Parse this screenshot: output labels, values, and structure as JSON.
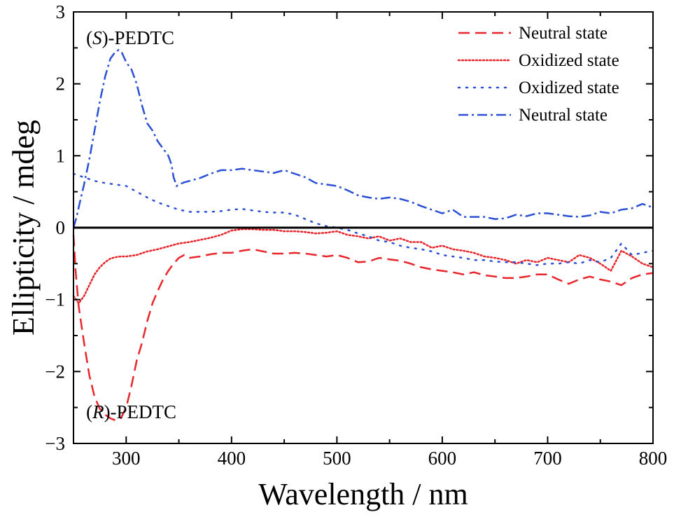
{
  "chart_data": {
    "type": "line",
    "xlabel": "Wavelength / nm",
    "ylabel": "Ellipticity / mdeg",
    "xlim": [
      250,
      800
    ],
    "ylim": [
      -3,
      3
    ],
    "x_ticks": [
      300,
      400,
      500,
      600,
      700,
      800
    ],
    "y_ticks": [
      -3,
      -2,
      -1,
      0,
      1,
      2,
      3
    ],
    "zero_line": true,
    "grid": false,
    "legend_position": "top-right",
    "annotations": [
      {
        "italic": "S",
        "rest": "-PEDTC",
        "x": 262,
        "y": 2.55
      },
      {
        "italic": "R",
        "rest": "-PEDTC",
        "x": 262,
        "y": -2.65
      }
    ],
    "series": [
      {
        "name": "Neutral state",
        "color": "#e8252b",
        "dash": "dash",
        "x": [
          250,
          252,
          255,
          260,
          265,
          270,
          275,
          280,
          285,
          290,
          295,
          300,
          305,
          310,
          315,
          320,
          325,
          330,
          335,
          340,
          345,
          350,
          355,
          360,
          370,
          380,
          390,
          400,
          410,
          420,
          430,
          440,
          450,
          460,
          470,
          480,
          490,
          500,
          510,
          520,
          530,
          540,
          550,
          560,
          570,
          580,
          590,
          600,
          610,
          620,
          630,
          640,
          650,
          660,
          670,
          680,
          690,
          700,
          710,
          720,
          730,
          740,
          750,
          760,
          770,
          780,
          790,
          800
        ],
        "y": [
          -0.1,
          -0.6,
          -1.1,
          -1.6,
          -2.05,
          -2.35,
          -2.52,
          -2.6,
          -2.65,
          -2.68,
          -2.65,
          -2.5,
          -2.2,
          -1.85,
          -1.6,
          -1.3,
          -1.05,
          -0.88,
          -0.72,
          -0.6,
          -0.5,
          -0.42,
          -0.38,
          -0.42,
          -0.4,
          -0.37,
          -0.35,
          -0.35,
          -0.32,
          -0.3,
          -0.33,
          -0.36,
          -0.36,
          -0.35,
          -0.36,
          -0.38,
          -0.4,
          -0.38,
          -0.42,
          -0.48,
          -0.47,
          -0.42,
          -0.44,
          -0.46,
          -0.5,
          -0.55,
          -0.58,
          -0.6,
          -0.62,
          -0.65,
          -0.62,
          -0.66,
          -0.68,
          -0.7,
          -0.7,
          -0.68,
          -0.65,
          -0.65,
          -0.72,
          -0.78,
          -0.72,
          -0.68,
          -0.72,
          -0.75,
          -0.8,
          -0.7,
          -0.65,
          -0.63
        ]
      },
      {
        "name": "Oxidized state",
        "color": "#e8252b",
        "dash": "dot",
        "x": [
          250,
          255,
          260,
          265,
          270,
          275,
          280,
          285,
          290,
          295,
          300,
          310,
          320,
          330,
          340,
          350,
          360,
          370,
          380,
          390,
          400,
          410,
          420,
          430,
          440,
          450,
          460,
          470,
          480,
          490,
          500,
          510,
          520,
          530,
          540,
          550,
          560,
          570,
          580,
          590,
          600,
          610,
          620,
          630,
          640,
          650,
          660,
          670,
          680,
          690,
          700,
          710,
          720,
          730,
          740,
          750,
          760,
          770,
          780,
          790,
          800
        ],
        "y": [
          -0.95,
          -1.05,
          -0.95,
          -0.8,
          -0.65,
          -0.55,
          -0.48,
          -0.43,
          -0.41,
          -0.4,
          -0.4,
          -0.38,
          -0.33,
          -0.3,
          -0.26,
          -0.22,
          -0.2,
          -0.17,
          -0.14,
          -0.1,
          -0.04,
          -0.02,
          -0.02,
          -0.03,
          -0.03,
          -0.05,
          -0.05,
          -0.06,
          -0.08,
          -0.07,
          -0.05,
          -0.1,
          -0.12,
          -0.15,
          -0.12,
          -0.18,
          -0.15,
          -0.2,
          -0.2,
          -0.28,
          -0.25,
          -0.3,
          -0.32,
          -0.35,
          -0.4,
          -0.42,
          -0.45,
          -0.5,
          -0.45,
          -0.48,
          -0.42,
          -0.45,
          -0.48,
          -0.38,
          -0.42,
          -0.5,
          -0.6,
          -0.32,
          -0.4,
          -0.5,
          -0.55
        ]
      },
      {
        "name": "Oxidized state",
        "color": "#2b50d6",
        "dash": "dot",
        "x": [
          250,
          260,
          270,
          280,
          290,
          300,
          310,
          320,
          330,
          340,
          350,
          360,
          370,
          380,
          390,
          400,
          410,
          420,
          430,
          440,
          450,
          460,
          470,
          480,
          490,
          500,
          510,
          520,
          530,
          540,
          550,
          560,
          570,
          580,
          590,
          600,
          610,
          620,
          630,
          640,
          650,
          660,
          670,
          680,
          690,
          700,
          710,
          720,
          730,
          740,
          750,
          760,
          770,
          780,
          790,
          800
        ],
        "y": [
          0.75,
          0.7,
          0.65,
          0.62,
          0.6,
          0.58,
          0.5,
          0.42,
          0.35,
          0.3,
          0.25,
          0.22,
          0.22,
          0.22,
          0.23,
          0.25,
          0.26,
          0.24,
          0.22,
          0.21,
          0.21,
          0.18,
          0.12,
          0.06,
          0.02,
          0.0,
          -0.03,
          -0.08,
          -0.12,
          -0.18,
          -0.2,
          -0.25,
          -0.28,
          -0.3,
          -0.33,
          -0.38,
          -0.4,
          -0.42,
          -0.45,
          -0.45,
          -0.47,
          -0.48,
          -0.48,
          -0.5,
          -0.52,
          -0.5,
          -0.5,
          -0.48,
          -0.5,
          -0.45,
          -0.48,
          -0.42,
          -0.22,
          -0.38,
          -0.35,
          -0.32
        ]
      },
      {
        "name": "Neutral state",
        "color": "#2b50d6",
        "dash": "dashdot",
        "x": [
          250,
          253,
          256,
          260,
          265,
          270,
          275,
          280,
          285,
          290,
          293,
          296,
          300,
          305,
          310,
          315,
          320,
          325,
          330,
          335,
          340,
          343,
          345,
          348,
          350,
          355,
          360,
          365,
          370,
          380,
          390,
          400,
          410,
          420,
          430,
          440,
          450,
          460,
          470,
          480,
          490,
          500,
          510,
          520,
          530,
          540,
          550,
          560,
          570,
          580,
          590,
          600,
          610,
          620,
          630,
          640,
          650,
          660,
          670,
          680,
          690,
          700,
          710,
          720,
          730,
          740,
          750,
          760,
          770,
          780,
          790,
          800
        ],
        "y": [
          0.0,
          0.15,
          0.35,
          0.6,
          0.95,
          1.35,
          1.75,
          2.1,
          2.35,
          2.45,
          2.47,
          2.43,
          2.3,
          2.2,
          2.0,
          1.7,
          1.45,
          1.35,
          1.2,
          1.1,
          1.0,
          0.88,
          0.7,
          0.58,
          0.6,
          0.63,
          0.65,
          0.67,
          0.69,
          0.75,
          0.8,
          0.8,
          0.82,
          0.8,
          0.78,
          0.76,
          0.8,
          0.75,
          0.7,
          0.62,
          0.6,
          0.58,
          0.52,
          0.45,
          0.42,
          0.4,
          0.42,
          0.4,
          0.36,
          0.3,
          0.25,
          0.2,
          0.25,
          0.15,
          0.15,
          0.15,
          0.12,
          0.13,
          0.18,
          0.16,
          0.2,
          0.2,
          0.18,
          0.16,
          0.15,
          0.17,
          0.22,
          0.2,
          0.25,
          0.27,
          0.33,
          0.28
        ]
      }
    ]
  }
}
